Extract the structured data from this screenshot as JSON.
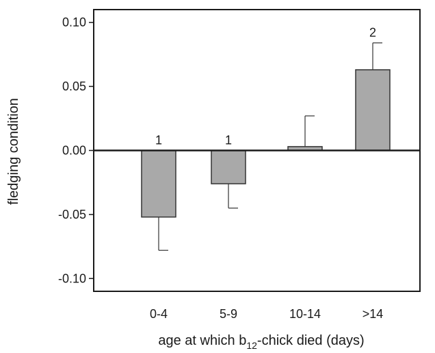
{
  "chart_data": {
    "type": "bar",
    "categories": [
      "0-4",
      "5-9",
      "10-14",
      ">14"
    ],
    "values": [
      -0.052,
      -0.026,
      0.003,
      0.063
    ],
    "error_upper": [
      null,
      null,
      0.024,
      0.021
    ],
    "error_lower": [
      0.026,
      0.019,
      null,
      null
    ],
    "annotations": [
      "1",
      "1",
      "",
      "2"
    ],
    "ylabel": "fledging condition",
    "xlabel_parts": [
      "age at which b",
      "12",
      "-chick died (days)"
    ],
    "ylim": [
      -0.11,
      0.11
    ],
    "yticks": [
      0.1,
      0.05,
      0.0,
      -0.05,
      -0.1
    ],
    "ytick_labels": [
      "0.10",
      "0.05",
      "0.00",
      "-0.05",
      "-0.10"
    ],
    "bar_color": "#a9a9a9",
    "edge_color": "#333333",
    "grid": false
  }
}
